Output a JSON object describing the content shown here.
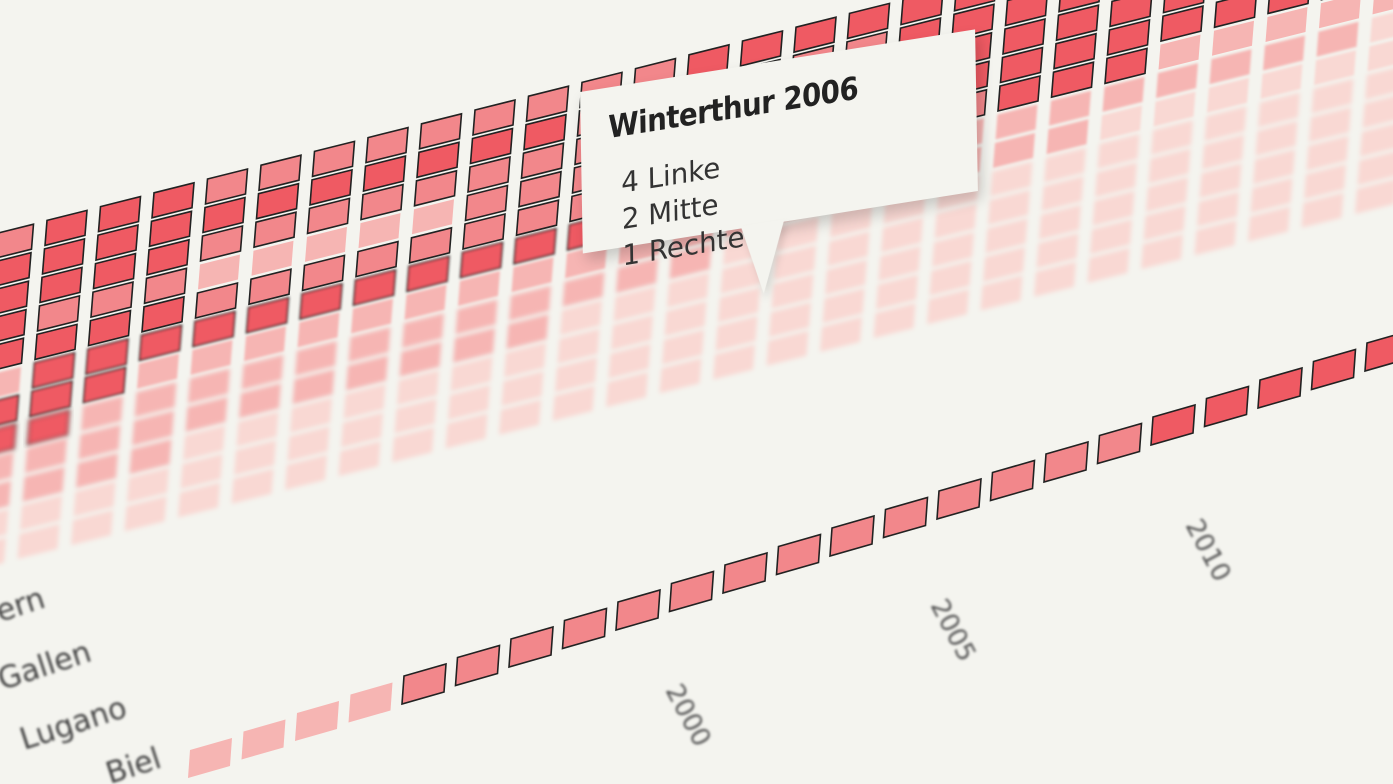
{
  "chart_data": {
    "type": "heatmap",
    "title": "",
    "rows": [
      "",
      "",
      "",
      "",
      "",
      "",
      "",
      "",
      "",
      "",
      "",
      "",
      "Luzern",
      "St.Gallen",
      "Lugano",
      "Biel"
    ],
    "row_labels_visible": [
      "...ern",
      "...Gallen",
      "Lugano",
      "...Biel"
    ],
    "x_tick_labels": [
      "2000",
      "2005",
      "2010"
    ],
    "legend": "none",
    "grid": false,
    "colors": {
      "strong": "#ef5a63",
      "medium": "#f2878b",
      "light": "#f6b5b3",
      "faint": "#f9d8d3",
      "background": "#f4f4ef",
      "border": "#222222"
    },
    "highlighted_series": [
      "Winterthur"
    ]
  },
  "tooltip": {
    "title": "Winterthur 2006",
    "lines": [
      "4 Linke",
      "2 Mitte",
      "1 Rechte"
    ]
  },
  "axis_labels": {
    "rows": [
      "ern",
      "Gallen",
      "Lugano",
      "Biel"
    ],
    "years": [
      "2000",
      "2005",
      "2010"
    ]
  }
}
